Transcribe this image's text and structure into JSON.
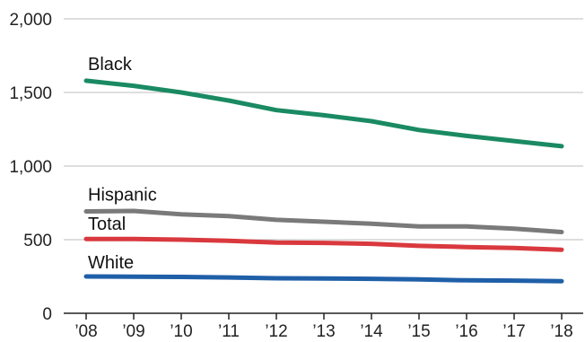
{
  "chart_data": {
    "type": "line",
    "title": "",
    "xlabel": "",
    "ylabel": "",
    "categories": [
      "’08",
      "’09",
      "’10",
      "’11",
      "’12",
      "’13",
      "’14",
      "’15",
      "’16",
      "’17",
      "’18"
    ],
    "ylim": [
      0,
      2000
    ],
    "yticks": [
      0,
      500,
      1000,
      1500,
      2000
    ],
    "ytick_labels": [
      "0",
      "500",
      "1,000",
      "1,500",
      "2,000"
    ],
    "grid": true,
    "legend": "direct labels",
    "series": [
      {
        "name": "Black",
        "color": "#1a8a63",
        "values": [
          1580,
          1545,
          1500,
          1445,
          1380,
          1345,
          1305,
          1245,
          1205,
          1170,
          1135
        ]
      },
      {
        "name": "Hispanic",
        "color": "#7a7a7a",
        "values": [
          692,
          695,
          672,
          660,
          635,
          622,
          608,
          590,
          590,
          575,
          552
        ]
      },
      {
        "name": "Total",
        "color": "#d9393e",
        "values": [
          505,
          505,
          500,
          492,
          480,
          478,
          472,
          458,
          450,
          443,
          432
        ]
      },
      {
        "name": "White",
        "color": "#1f5fa8",
        "values": [
          250,
          248,
          247,
          243,
          238,
          236,
          234,
          230,
          224,
          222,
          218
        ]
      }
    ]
  }
}
